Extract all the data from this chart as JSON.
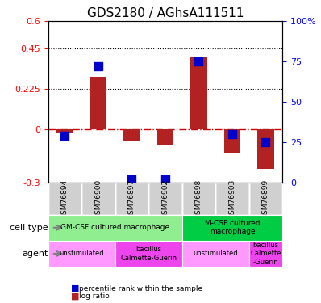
{
  "title": "GDS2180 / AGhsA111511",
  "samples": [
    "GSM76894",
    "GSM76900",
    "GSM76897",
    "GSM76902",
    "GSM76898",
    "GSM76903",
    "GSM76899"
  ],
  "log_ratio": [
    -0.02,
    0.29,
    -0.065,
    -0.09,
    0.4,
    -0.13,
    -0.22
  ],
  "percentile_rank": [
    0.29,
    0.72,
    0.02,
    0.02,
    0.75,
    0.3,
    0.25
  ],
  "ylim_left": [
    -0.3,
    0.6
  ],
  "ylim_right": [
    0,
    100
  ],
  "yticks_left": [
    -0.3,
    0,
    0.225,
    0.45,
    0.6
  ],
  "yticks_right": [
    0,
    25,
    50,
    75,
    100
  ],
  "hlines": [
    0.225,
    0.45
  ],
  "bar_color": "#b22222",
  "dot_color": "#0000cc",
  "zero_line_color": "#cc0000",
  "cell_type_groups": [
    {
      "label": "GM-CSF cultured macrophage",
      "start": 0,
      "end": 4,
      "color": "#90ee90"
    },
    {
      "label": "M-CSF cultured\nmacrophage",
      "start": 4,
      "end": 7,
      "color": "#00cc44"
    }
  ],
  "agent_groups": [
    {
      "label": "unstimulated",
      "start": 0,
      "end": 2,
      "color": "#ff99ff"
    },
    {
      "label": "bacillus\nCalmette-Guerin",
      "start": 2,
      "end": 4,
      "color": "#ee44ee"
    },
    {
      "label": "unstimulated",
      "start": 4,
      "end": 6,
      "color": "#ff99ff"
    },
    {
      "label": "bacillus\nCalmette\n-Guerin",
      "start": 6,
      "end": 7,
      "color": "#ee44ee"
    }
  ],
  "xlabel_cell_type": "cell type",
  "xlabel_agent": "agent",
  "legend_items": [
    {
      "label": "log ratio",
      "color": "#b22222"
    },
    {
      "label": "percentile rank within the sample",
      "color": "#0000cc"
    }
  ],
  "bar_width": 0.5,
  "dot_size": 60,
  "title_fontsize": 11,
  "tick_fontsize": 8,
  "label_fontsize": 8,
  "annotation_fontsize": 7
}
